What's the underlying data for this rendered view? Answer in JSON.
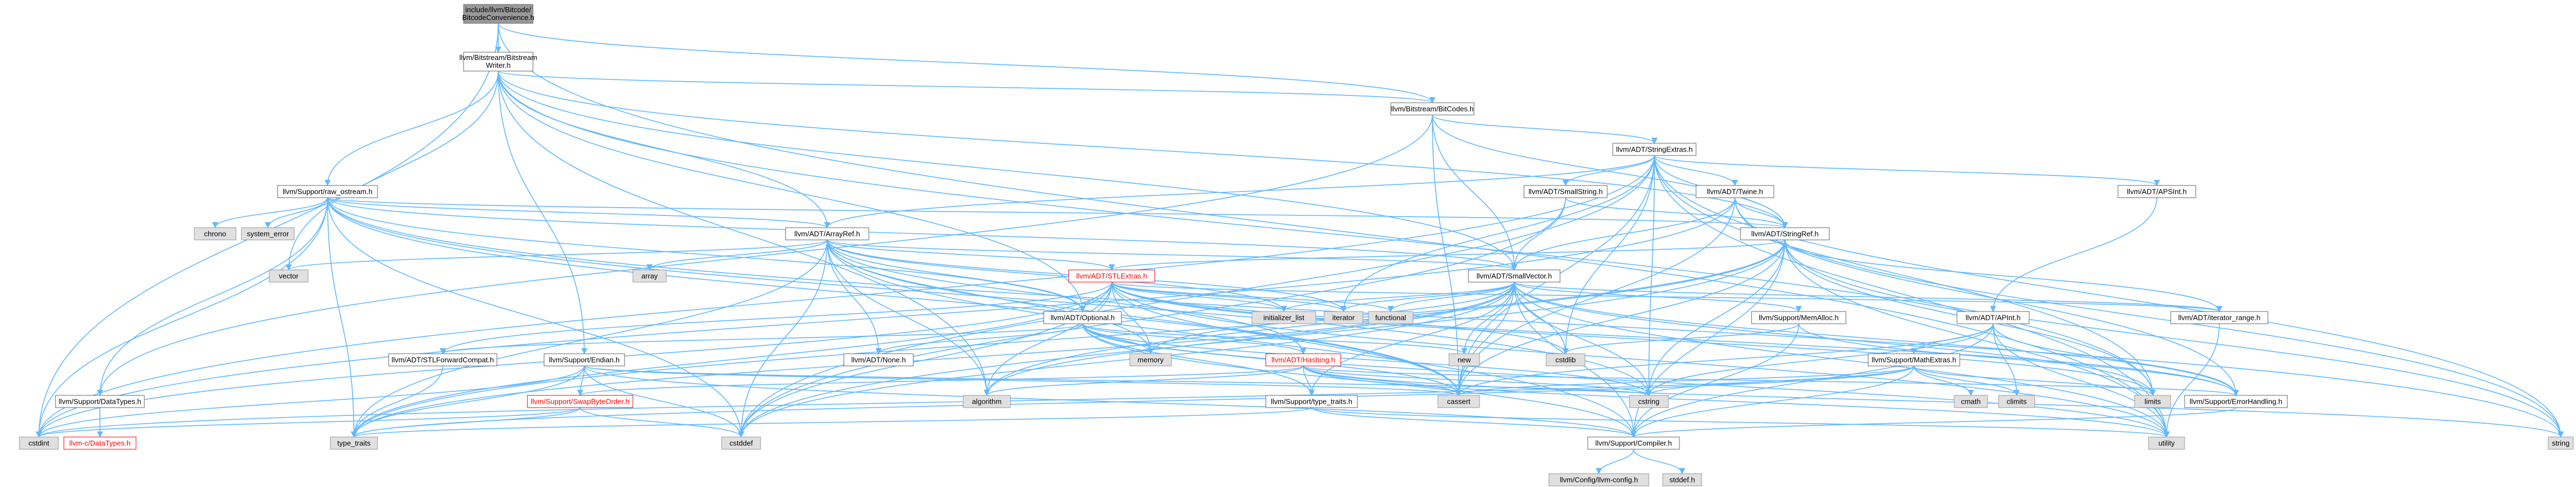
{
  "colors": {
    "edge": "#63b8ff",
    "focus_fill": "#999999",
    "system_fill": "#e0e0e0",
    "header_fill": "#ffffff",
    "truncated_border": "#ff0000"
  },
  "nodes": {
    "convenience": "include/llvm/Bitcode/BitcodeConvenience.h",
    "writer": "llvm/Bitstream/BitstreamWriter.h",
    "bitcodes": "llvm/Bitstream/BitCodes.h",
    "stringextras": "llvm/ADT/StringExtras.h",
    "raw_ostream": "llvm/Support/raw_ostream.h",
    "smallstring": "llvm/ADT/SmallString.h",
    "twine": "llvm/ADT/Twine.h",
    "apsint": "llvm/ADT/APSInt.h",
    "stringref": "llvm/ADT/StringRef.h",
    "arrayref": "llvm/ADT/ArrayRef.h",
    "stlextras": "llvm/ADT/STLExtras.h",
    "smallvector": "llvm/ADT/SmallVector.h",
    "optional": "llvm/ADT/Optional.h",
    "memalloc": "llvm/Support/MemAlloc.h",
    "iterator_range": "llvm/ADT/iterator_range.h",
    "apint": "llvm/ADT/APInt.h",
    "stlforward": "llvm/ADT/STLForwardCompat.h",
    "endian": "llvm/Support/Endian.h",
    "none": "llvm/ADT/None.h",
    "hashing": "llvm/ADT/Hashing.h",
    "mathextras": "llvm/Support/MathExtras.h",
    "datatypes": "llvm/Support/DataTypes.h",
    "swapbyteorder": "llvm/Support/SwapByteOrder.h",
    "type_traits_h": "llvm/Support/type_traits.h",
    "errorhandling": "llvm/Support/ErrorHandling.h",
    "c_datatypes": "llvm-c/DataTypes.h",
    "compiler": "llvm/Support/Compiler.h",
    "config": "llvm/Config/llvm-config.h",
    "chrono": "chrono",
    "system_error": "system_error",
    "vector": "vector",
    "array": "array",
    "initializer_list": "initializer_list",
    "iterator": "iterator",
    "functional": "functional",
    "memory": "memory",
    "new": "new",
    "cstdlib": "cstdlib",
    "algorithm": "algorithm",
    "cassert": "cassert",
    "cstring": "cstring",
    "limits": "limits",
    "cmath": "cmath",
    "climits": "climits",
    "cstdint": "cstdint",
    "type_traits": "type_traits",
    "cstddef": "cstddef",
    "utility": "utility",
    "string": "string",
    "stddef": "stddef.h"
  }
}
